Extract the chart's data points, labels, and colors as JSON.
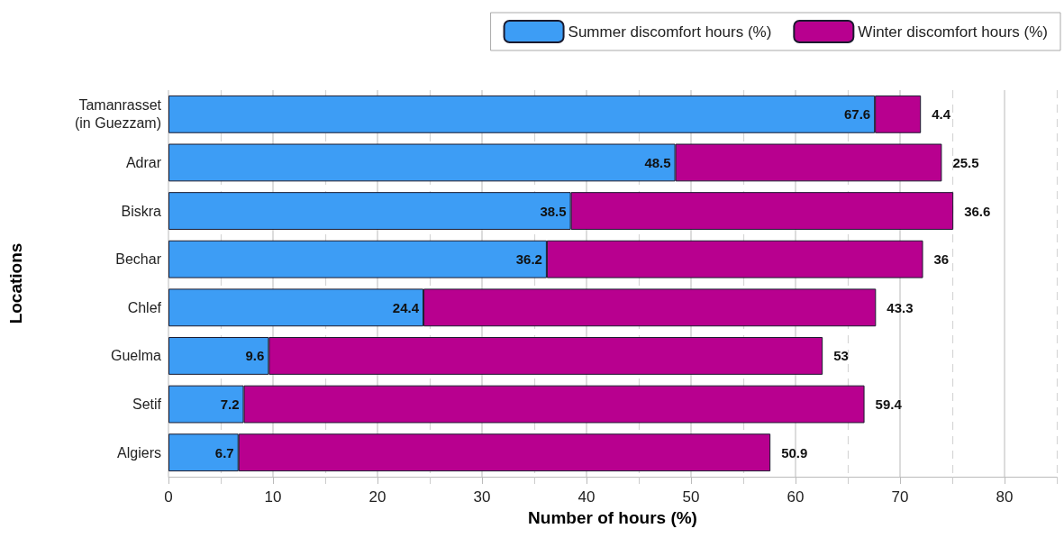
{
  "chart_data": {
    "type": "bar",
    "orientation": "horizontal",
    "stacked": true,
    "xlabel": "Number of hours (%)",
    "ylabel": "Locations",
    "categories": [
      "Tamanrasset\n(in Guezzam)",
      "Adrar",
      "Biskra",
      "Bechar",
      "Chlef",
      "Guelma",
      "Setif",
      "Algiers"
    ],
    "series": [
      {
        "name": "Summer discomfort hours (%)",
        "color": "#3d9df5",
        "values": [
          67.6,
          48.5,
          38.5,
          36.2,
          24.4,
          9.6,
          7.2,
          6.7
        ]
      },
      {
        "name": "Winter discomfort hours (%)",
        "color": "#b8008f",
        "values": [
          4.4,
          25.5,
          36.6,
          36,
          43.3,
          53,
          59.4,
          50.9
        ]
      }
    ],
    "xlim": [
      0,
      85
    ],
    "xticks": [
      0,
      {
        "value": 5,
        "label": null
      },
      10,
      {
        "value": 15,
        "label": null
      },
      20,
      {
        "value": 25,
        "label": null
      },
      30,
      {
        "value": 35,
        "label": null
      },
      40,
      {
        "value": 45,
        "label": null
      },
      50,
      {
        "value": 55,
        "label": null
      },
      60,
      {
        "value": 65,
        "label": null
      },
      70,
      {
        "value": 75,
        "label": null
      },
      80,
      {
        "value": 85,
        "label": null
      }
    ],
    "grid": "x",
    "legend": "top right",
    "data_labels": true
  }
}
